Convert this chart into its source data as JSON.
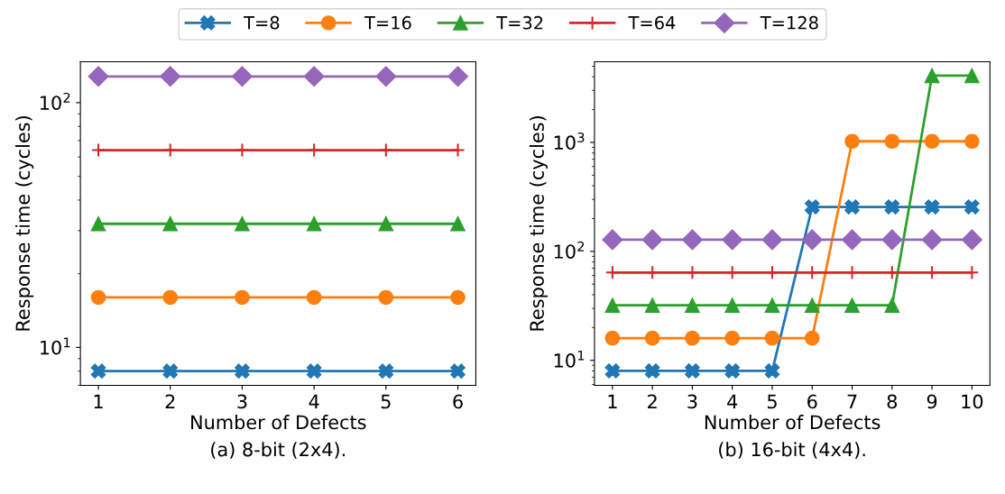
{
  "chart_data": [
    {
      "type": "line",
      "xlabel": "Number of Defects",
      "ylabel": "Response time (cycles)",
      "annotations": [
        "(a) 8-bit (2x4)."
      ],
      "log": "y",
      "legend": "top",
      "grid": false,
      "x": [
        1,
        2,
        3,
        4,
        5,
        6
      ],
      "xlim": [
        0.75,
        6.25
      ],
      "xticks": [
        1,
        2,
        3,
        4,
        5,
        6
      ],
      "ylim": [
        7,
        147
      ],
      "yticks": [
        {
          "value": 10,
          "label": "10$^{1}$"
        },
        {
          "value": 100,
          "label": "10$^{2}$"
        }
      ],
      "series": [
        {
          "name": "T=8",
          "color": "#1f77b4",
          "marker": "cross",
          "values": [
            8,
            8,
            8,
            8,
            8,
            8
          ]
        },
        {
          "name": "T=16",
          "color": "#ff7f0e",
          "marker": "circle",
          "values": [
            16,
            16,
            16,
            16,
            16,
            16
          ]
        },
        {
          "name": "T=32",
          "color": "#2ca02c",
          "marker": "triangle",
          "values": [
            32,
            32,
            32,
            32,
            32,
            32
          ]
        },
        {
          "name": "T=64",
          "color": "#d62728",
          "marker": "plus",
          "values": [
            64,
            64,
            64,
            64,
            64,
            64
          ]
        },
        {
          "name": "T=128",
          "color": "#9467bd",
          "marker": "diamond",
          "values": [
            128,
            128,
            128,
            128,
            128,
            128
          ]
        }
      ]
    },
    {
      "type": "line",
      "xlabel": "Number of Defects",
      "ylabel": "Response time (cycles)",
      "annotations": [
        "(b) 16-bit (4x4)."
      ],
      "log": "y",
      "grid": false,
      "x": [
        1,
        2,
        3,
        4,
        5,
        6,
        7,
        8,
        9,
        10
      ],
      "xlim": [
        0.55,
        10.45
      ],
      "xticks": [
        1,
        2,
        3,
        4,
        5,
        6,
        7,
        8,
        9,
        10
      ],
      "ylim": [
        5.9,
        5500
      ],
      "yticks": [
        {
          "value": 10,
          "label": "10$^{1}$"
        },
        {
          "value": 100,
          "label": "10$^{2}$"
        },
        {
          "value": 1000,
          "label": "10$^{3}$"
        }
      ],
      "series": [
        {
          "color": "#1f77b4",
          "marker": "cross",
          "values": [
            8,
            8,
            8,
            8,
            8,
            256,
            256,
            256,
            256,
            256
          ]
        },
        {
          "color": "#ff7f0e",
          "marker": "circle",
          "values": [
            16,
            16,
            16,
            16,
            16,
            16,
            1024,
            1024,
            1024,
            1024
          ]
        },
        {
          "color": "#2ca02c",
          "marker": "triangle",
          "values": [
            32,
            32,
            32,
            32,
            32,
            32,
            32,
            32,
            4096,
            4096
          ]
        },
        {
          "color": "#d62728",
          "marker": "plus",
          "values": [
            64,
            64,
            64,
            64,
            64,
            64,
            64,
            64,
            64,
            64
          ]
        },
        {
          "color": "#9467bd",
          "marker": "diamond",
          "values": [
            128,
            128,
            128,
            128,
            128,
            128,
            128,
            128,
            128,
            128
          ]
        }
      ]
    }
  ]
}
